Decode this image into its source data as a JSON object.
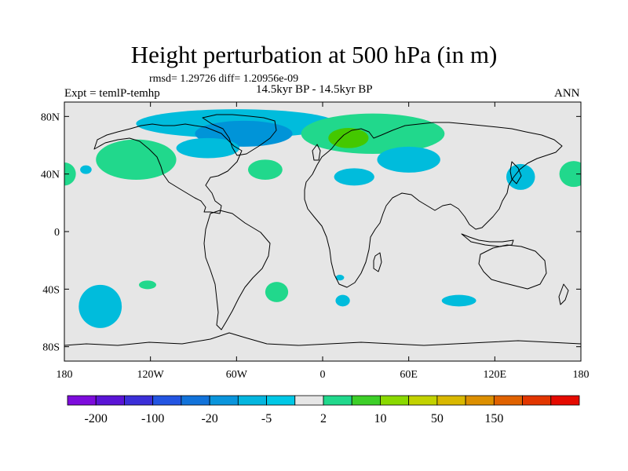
{
  "title": "Height perturbation at 500 hPa (in m)",
  "stats_line": "rmsd= 1.29726 diff= 1.20956e-09",
  "left_subtitle": "Expt = temlP-temhp",
  "center_subtitle": "14.5kyr BP - 14.5kyr BP",
  "right_subtitle": "ANN",
  "map": {
    "background_color": "#e6e6e6",
    "lon_range": [
      -180,
      180
    ],
    "lat_range": [
      -90,
      90
    ],
    "lat_ticks": [
      {
        "label": "80N",
        "lat": 80
      },
      {
        "label": "40N",
        "lat": 40
      },
      {
        "label": "0",
        "lat": 0
      },
      {
        "label": "40S",
        "lat": -40
      },
      {
        "label": "80S",
        "lat": -80
      }
    ],
    "lon_ticks": [
      {
        "label": "180",
        "lon": -180
      },
      {
        "label": "120W",
        "lon": -120
      },
      {
        "label": "60W",
        "lon": -60
      },
      {
        "label": "0",
        "lon": 0
      },
      {
        "label": "60E",
        "lon": 60
      },
      {
        "label": "120E",
        "lon": 120
      },
      {
        "label": "180",
        "lon": 180
      }
    ]
  },
  "regions": [
    {
      "name": "arctic-negative-region",
      "color": "#00bcdc",
      "lon": -60,
      "lat": 75,
      "rlon": 70,
      "rlat": 10
    },
    {
      "name": "greenland-negative-core",
      "color": "#0094d8",
      "lon": -55,
      "lat": 68,
      "rlon": 34,
      "rlat": 9
    },
    {
      "name": "hudson-negative-region",
      "color": "#00bcdc",
      "lon": -80,
      "lat": 58,
      "rlon": 22,
      "rlat": 7
    },
    {
      "name": "scandinavia-positive-region",
      "color": "#21d88c",
      "lon": 35,
      "lat": 68,
      "rlon": 50,
      "rlat": 14
    },
    {
      "name": "europe-positive-core",
      "color": "#44c800",
      "lon": 18,
      "lat": 65,
      "rlon": 14,
      "rlat": 7
    },
    {
      "name": "central-asia-negative-region",
      "color": "#00bcdc",
      "lon": 60,
      "lat": 50,
      "rlon": 22,
      "rlat": 9
    },
    {
      "name": "mediterranean-negative-region",
      "color": "#00bcdc",
      "lon": 22,
      "lat": 38,
      "rlon": 14,
      "rlat": 6
    },
    {
      "name": "alaska-positive-region",
      "color": "#21d88c",
      "lon": -130,
      "lat": 50,
      "rlon": 28,
      "rlat": 14
    },
    {
      "name": "west-atlantic-positive-region",
      "color": "#21d88c",
      "lon": -40,
      "lat": 43,
      "rlon": 12,
      "rlat": 7
    },
    {
      "name": "dateline-positive-region-west",
      "color": "#21d88c",
      "lon": -180,
      "lat": 40,
      "rlon": 8,
      "rlat": 8
    },
    {
      "name": "north-pacific-positive-region-east",
      "color": "#21d88c",
      "lon": 175,
      "lat": 40,
      "rlon": 10,
      "rlat": 9
    },
    {
      "name": "japan-negative-region",
      "color": "#00bcdc",
      "lon": 138,
      "lat": 38,
      "rlon": 10,
      "rlat": 9
    },
    {
      "name": "pacific-small-negative-region",
      "color": "#00bcdc",
      "lon": -165,
      "lat": 43,
      "rlon": 4,
      "rlat": 3
    },
    {
      "name": "south-pacific-negative-region",
      "color": "#00bcdc",
      "lon": -155,
      "lat": -52,
      "rlon": 15,
      "rlat": 15
    },
    {
      "name": "south-pacific-positive-region",
      "color": "#21d88c",
      "lon": -122,
      "lat": -37,
      "rlon": 6,
      "rlat": 3
    },
    {
      "name": "south-atlantic-positive-region",
      "color": "#21d88c",
      "lon": -32,
      "lat": -42,
      "rlon": 8,
      "rlat": 7
    },
    {
      "name": "south-atlantic-negative-small",
      "color": "#00bcdc",
      "lon": 12,
      "lat": -32,
      "rlon": 3,
      "rlat": 2
    },
    {
      "name": "south-africa-negative-region",
      "color": "#00bcdc",
      "lon": 14,
      "lat": -48,
      "rlon": 5,
      "rlat": 4
    },
    {
      "name": "south-indian-negative-region",
      "color": "#00bcdc",
      "lon": 95,
      "lat": -48,
      "rlon": 12,
      "rlat": 4
    }
  ],
  "colorbar": {
    "colors": [
      "#7d0cdc",
      "#5a14d6",
      "#3b2fd8",
      "#2355e2",
      "#1273da",
      "#0a95dc",
      "#04b6df",
      "#00c8e6",
      "#e6e6e6",
      "#21d88c",
      "#3dcf28",
      "#8ad900",
      "#c2d200",
      "#d9b800",
      "#dc8f00",
      "#e06200",
      "#e23600",
      "#e50a00"
    ],
    "labels": [
      {
        "text": "-200",
        "index": 1
      },
      {
        "text": "-100",
        "index": 3
      },
      {
        "text": "-20",
        "index": 5
      },
      {
        "text": "-5",
        "index": 7
      },
      {
        "text": "2",
        "index": 9
      },
      {
        "text": "10",
        "index": 11
      },
      {
        "text": "50",
        "index": 13
      },
      {
        "text": "150",
        "index": 15
      }
    ]
  }
}
